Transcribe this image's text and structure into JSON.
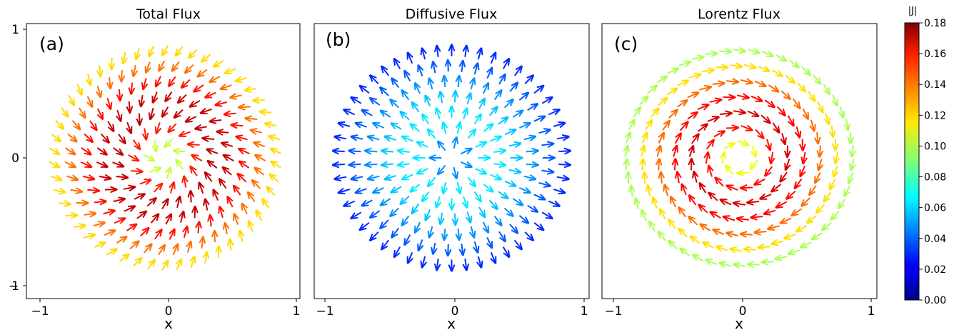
{
  "chart_data": [
    {
      "type": "quiver",
      "panel_label": "(a)",
      "title": "Total Flux",
      "xlabel": "x",
      "ylabel": "",
      "xlim": [
        -1.05,
        1.02
      ],
      "ylim": [
        -1.1,
        1.05
      ],
      "xticks": [
        -1,
        0,
        1
      ],
      "yticks": [
        -1,
        0,
        1
      ],
      "field": "swirl",
      "rotation_deg": 150,
      "magnitude_peak": 0.17,
      "magnitude_peak_radius": 0.4
    },
    {
      "type": "quiver",
      "panel_label": "(b)",
      "title": "Diffusive Flux",
      "xlabel": "x",
      "ylabel": "",
      "xlim": [
        -1.02,
        1.02
      ],
      "ylim": [
        -1.1,
        1.05
      ],
      "xticks": [
        -1,
        0,
        1
      ],
      "yticks": [],
      "field": "radial-outward",
      "rotation_deg": 0,
      "magnitude_peak": 0.065,
      "magnitude_peak_radius": 0.3
    },
    {
      "type": "quiver",
      "panel_label": "(c)",
      "title": "Lorentz Flux",
      "xlabel": "x",
      "ylabel": "",
      "xlim": [
        -1.02,
        1.02
      ],
      "ylim": [
        -1.1,
        1.05
      ],
      "xticks": [
        -1,
        0,
        1
      ],
      "yticks": [],
      "field": "clockwise-circulation",
      "rotation_deg": -100,
      "magnitude_peak": 0.165,
      "magnitude_peak_radius": 0.35
    }
  ],
  "colorbar": {
    "label": "|J|",
    "colormap": "jet",
    "range": [
      0,
      0.18
    ],
    "ticks": [
      "0.00",
      "0.02",
      "0.04",
      "0.06",
      "0.08",
      "0.10",
      "0.12",
      "0.14",
      "0.16",
      "0.18"
    ]
  }
}
